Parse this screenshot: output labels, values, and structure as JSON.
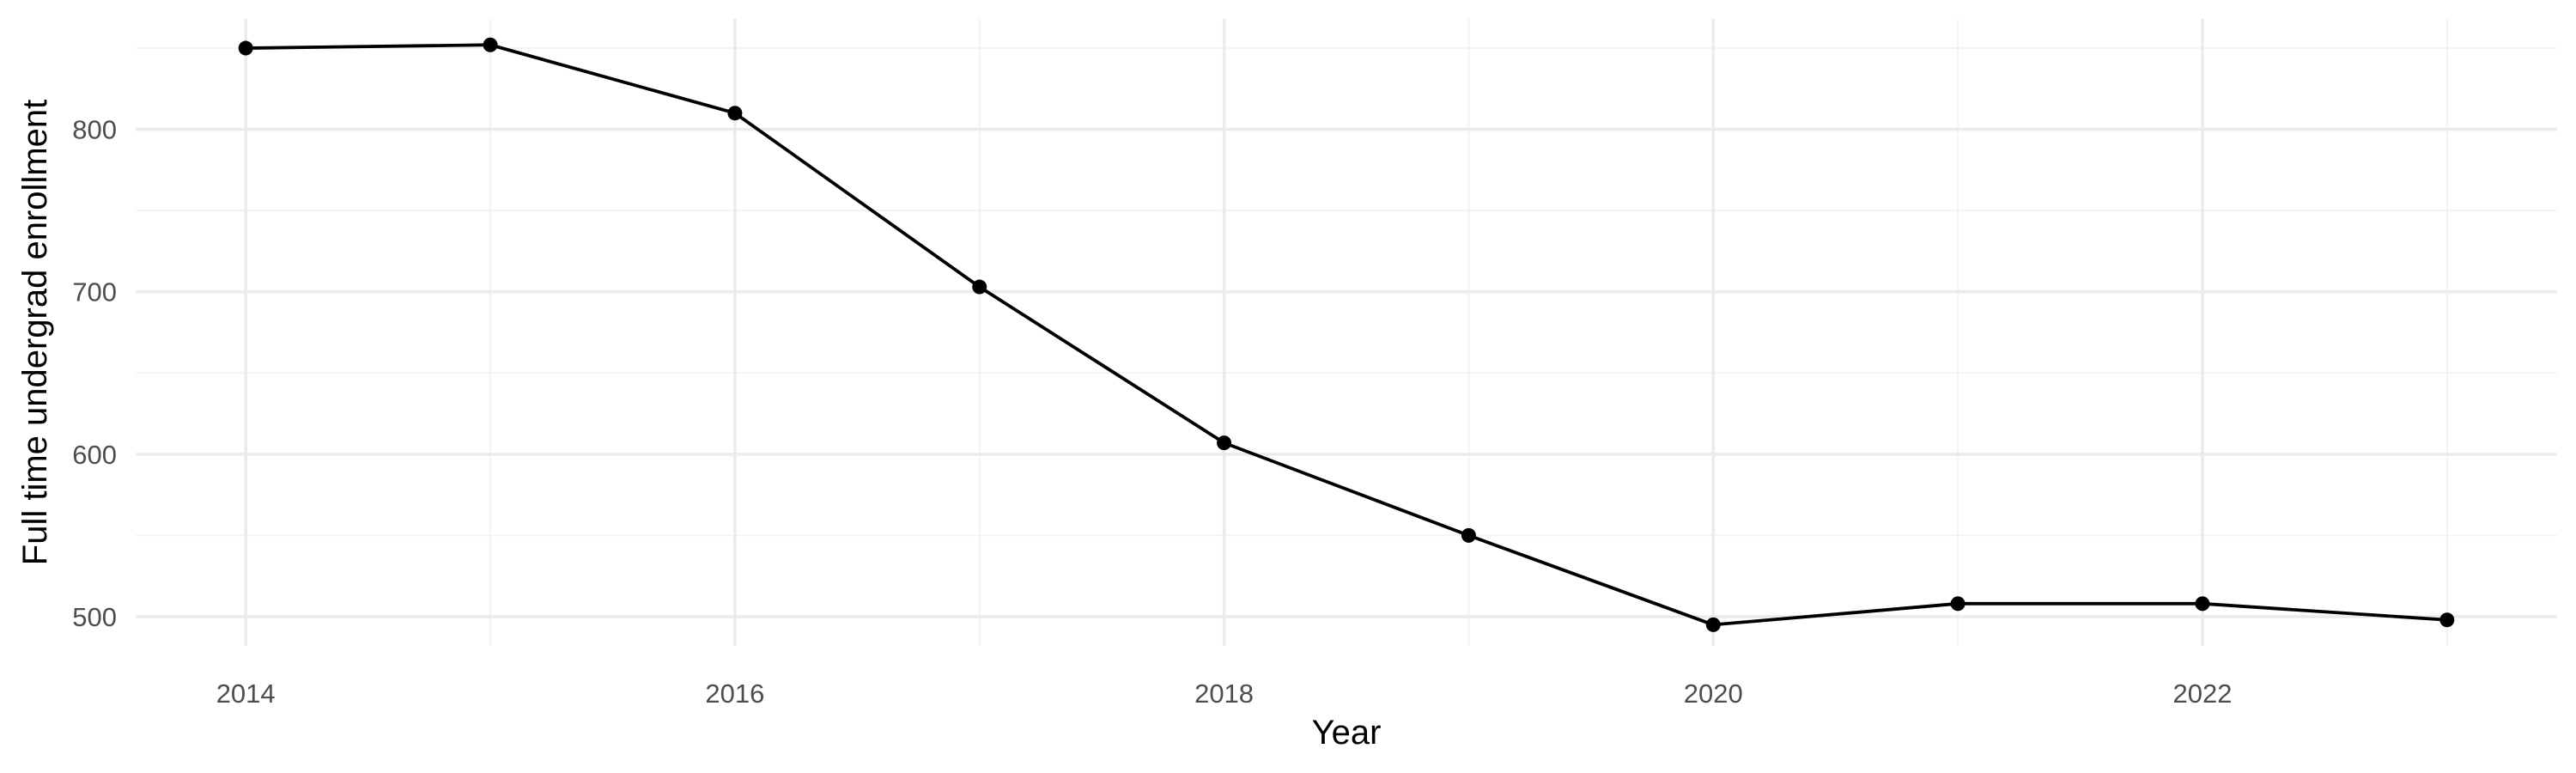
{
  "chart_data": {
    "type": "line",
    "title": "",
    "xlabel": "Year",
    "ylabel": "Full time undergrad enrollment",
    "x": [
      2014,
      2015,
      2016,
      2017,
      2018,
      2019,
      2020,
      2021,
      2022,
      2023
    ],
    "series": [
      {
        "values": [
          850,
          852,
          810,
          703,
          607,
          550,
          495,
          508,
          508,
          498
        ],
        "color": "#000000"
      }
    ],
    "xlim": [
      2013.55,
      2023.45
    ],
    "ylim": [
      482,
      868
    ],
    "x_ticks": [
      2014,
      2016,
      2018,
      2020,
      2022
    ],
    "x_tick_labels": [
      "2014",
      "2016",
      "2018",
      "2020",
      "2022"
    ],
    "x_minor_ticks": [
      2015,
      2017,
      2019,
      2021,
      2023
    ],
    "y_ticks": [
      500,
      600,
      700,
      800
    ],
    "y_tick_labels": [
      "500",
      "600",
      "700",
      "800"
    ],
    "y_minor_ticks": [
      550,
      650,
      750,
      850
    ],
    "grid": true,
    "legend": "none",
    "colors": {
      "background": "#ffffff",
      "grid_major": "#ebebeb",
      "grid_minor": "#f3f3f3",
      "line": "#000000",
      "points": "#000000",
      "tick_label": "#4d4d4d",
      "axis_title": "#000000"
    }
  }
}
